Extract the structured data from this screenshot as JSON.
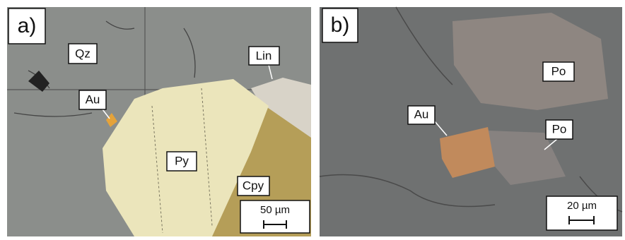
{
  "panels": [
    {
      "label": "a)",
      "annotations": [
        "Qz",
        "Lin",
        "Au",
        "Py",
        "Cpy"
      ],
      "scale_bar": "50 µm"
    },
    {
      "label": "b)",
      "annotations": [
        "Po",
        "Au",
        "Po"
      ],
      "scale_bar": "20 µm"
    }
  ]
}
